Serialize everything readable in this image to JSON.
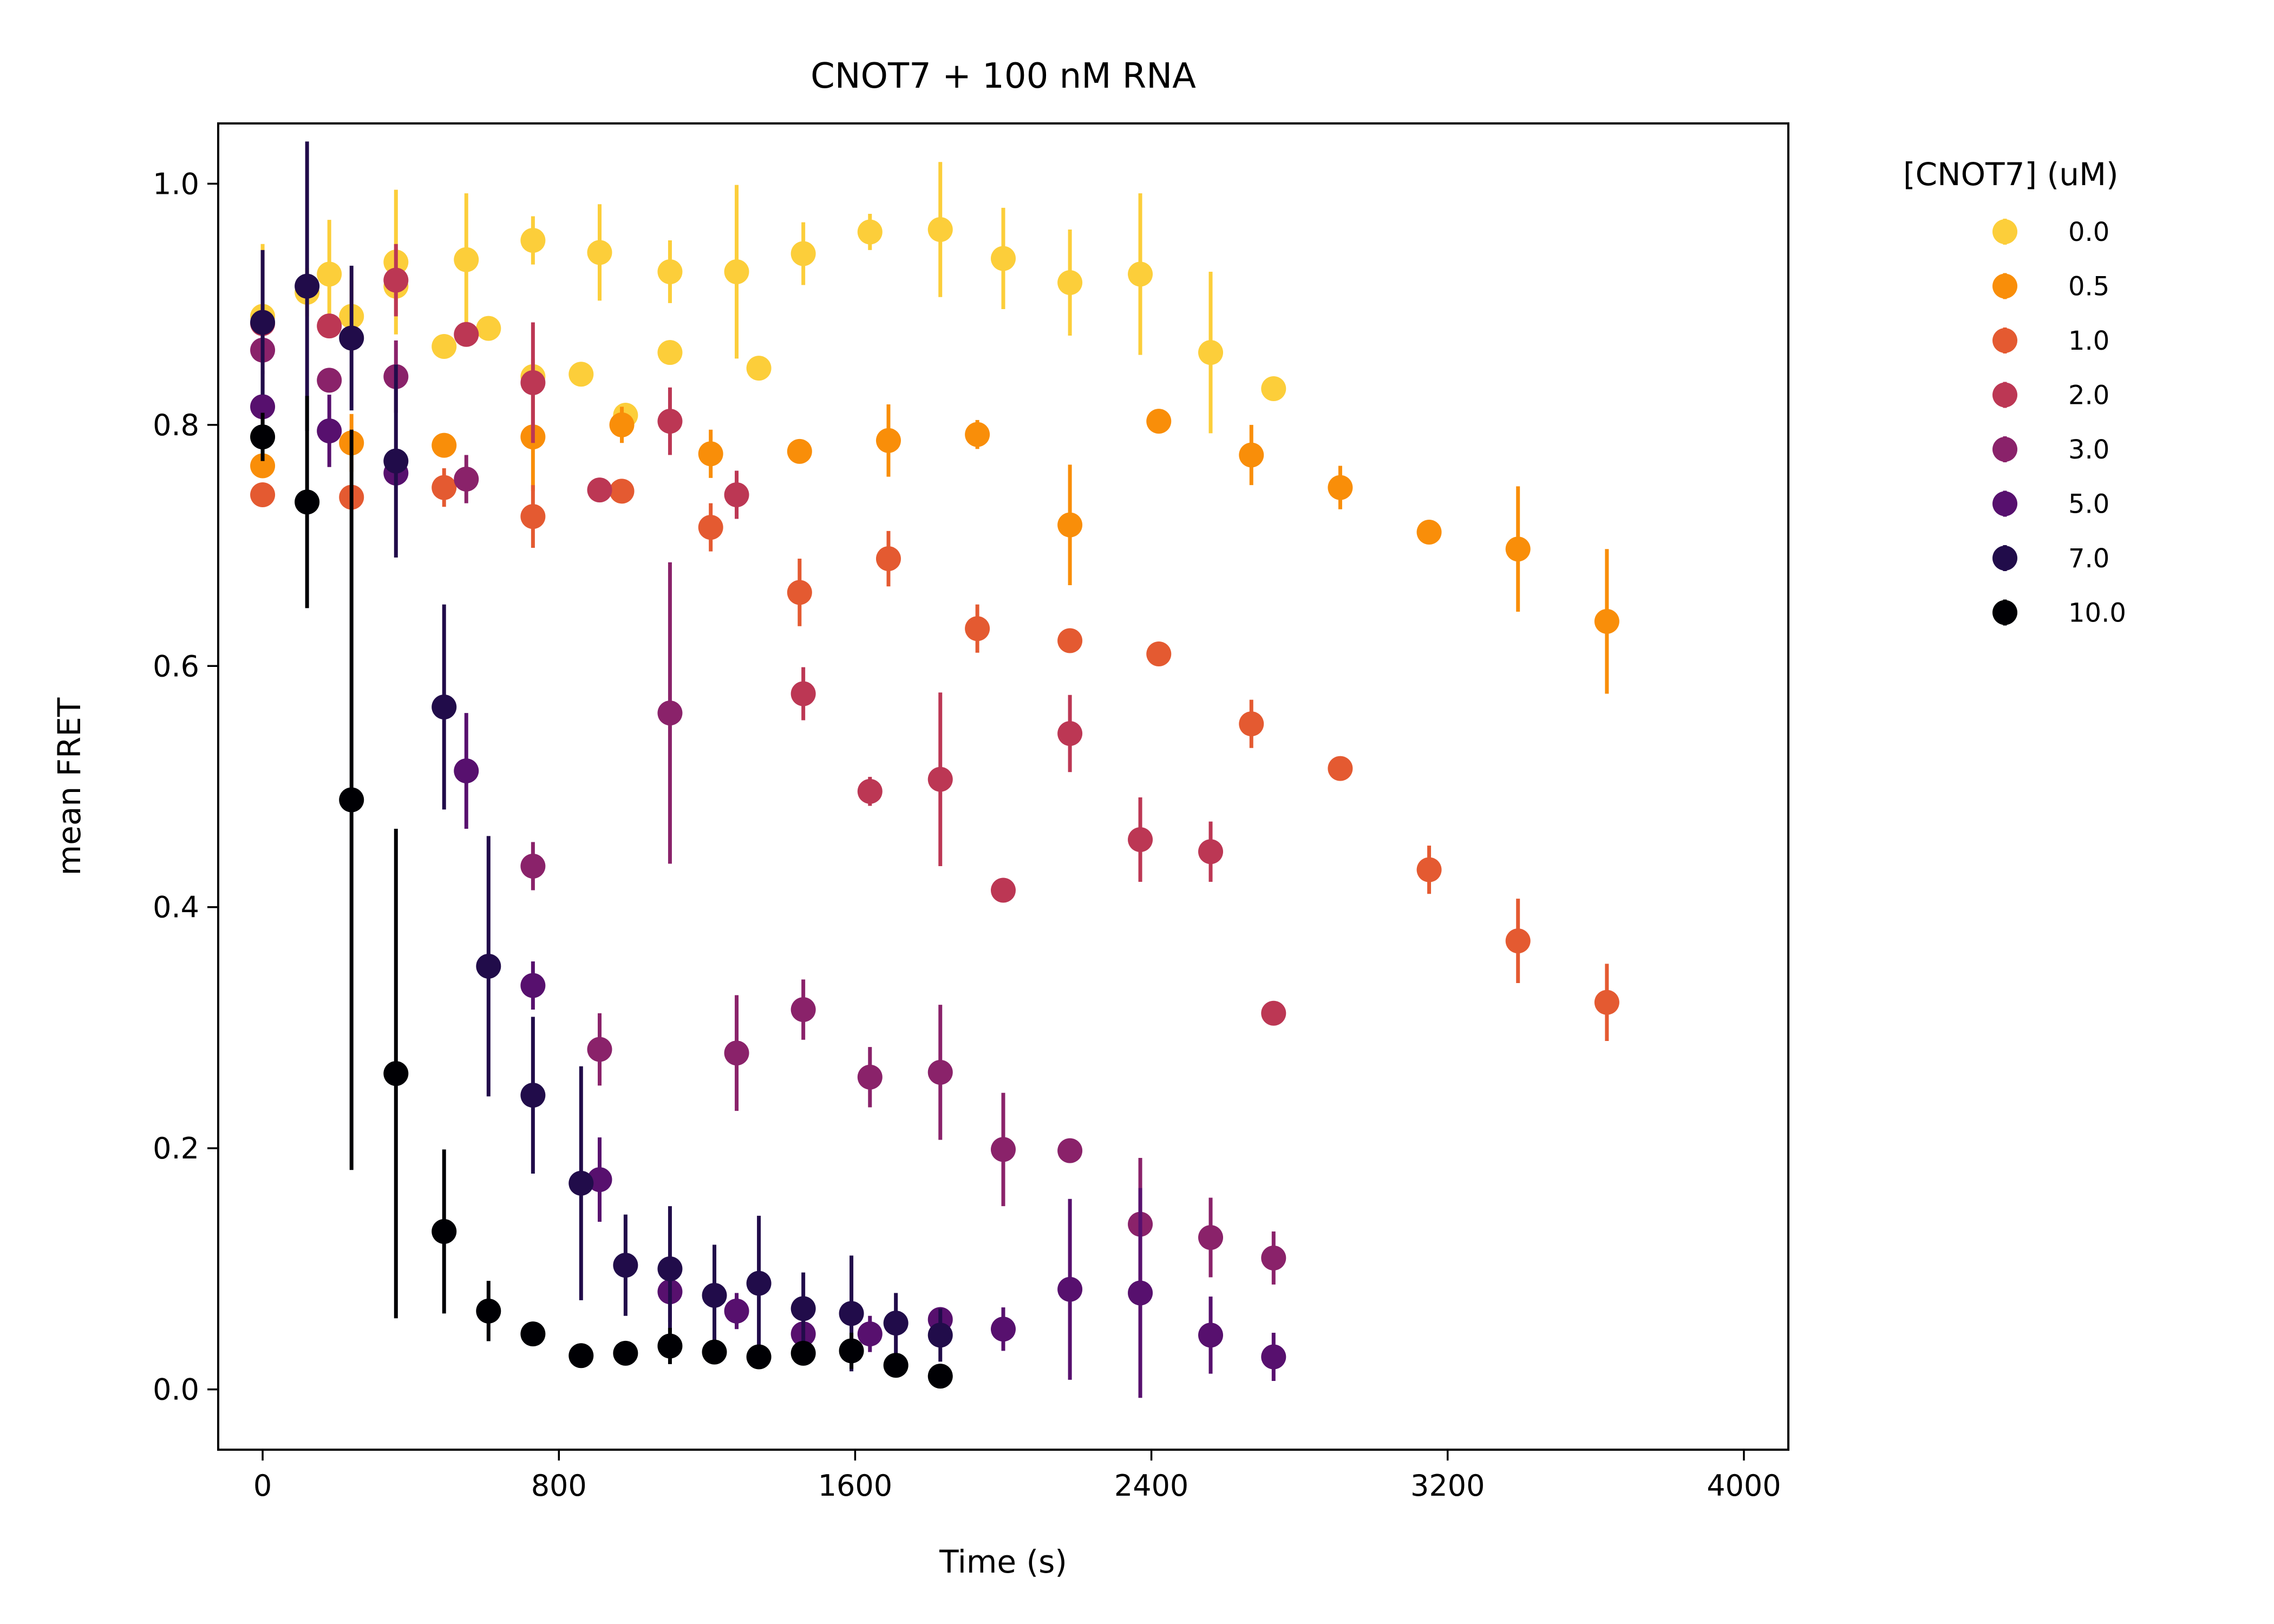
{
  "chart_data": {
    "type": "scatter",
    "title": "CNOT7 + 100 nM RNA",
    "xlabel": "Time (s)",
    "ylabel": "mean FRET",
    "xlim": [
      -120,
      4120
    ],
    "ylim": [
      -0.05,
      1.05
    ],
    "xticks": [
      0,
      800,
      1600,
      2400,
      3200,
      4000
    ],
    "xtick_labels": [
      "0",
      "800",
      "1600",
      "2400",
      "3200",
      "4000"
    ],
    "yticks": [
      0.0,
      0.2,
      0.4,
      0.6,
      0.8,
      1.0
    ],
    "ytick_labels": [
      "0.0",
      "0.2",
      "0.4",
      "0.6",
      "0.8",
      "1.0"
    ],
    "grid": false,
    "error_bars": true,
    "legend": {
      "title": "[CNOT7] (uM)",
      "placement": "outside-right"
    },
    "series": [
      {
        "name": "0.0",
        "color": "#fcce3a",
        "points": [
          [
            0,
            0.89,
            0.06
          ],
          [
            120,
            0.91,
            0.02
          ],
          [
            180,
            0.925,
            0.045
          ],
          [
            240,
            0.89,
            0.03
          ],
          [
            360,
            0.935,
            0.06
          ],
          [
            360,
            0.915,
            0.01
          ],
          [
            490,
            0.865,
            0.01
          ],
          [
            550,
            0.937,
            0.055
          ],
          [
            610,
            0.88,
            0.01
          ],
          [
            730,
            0.953,
            0.02
          ],
          [
            730,
            0.84,
            0.015
          ],
          [
            860,
            0.842,
            0.01
          ],
          [
            910,
            0.943,
            0.04
          ],
          [
            980,
            0.808,
            0.01
          ],
          [
            1100,
            0.927,
            0.026
          ],
          [
            1100,
            0.86,
            0.01
          ],
          [
            1280,
            0.927,
            0.072
          ],
          [
            1340,
            0.847,
            0.01
          ],
          [
            1460,
            0.942,
            0.026
          ],
          [
            1640,
            0.96,
            0.015
          ],
          [
            1830,
            0.962,
            0.056
          ],
          [
            2000,
            0.938,
            0.042
          ],
          [
            2180,
            0.918,
            0.044
          ],
          [
            2370,
            0.925,
            0.067
          ],
          [
            2560,
            0.86,
            0.067
          ],
          [
            2730,
            0.83,
            0.01
          ]
        ]
      },
      {
        "name": "0.5",
        "color": "#f98e09",
        "points": [
          [
            0,
            0.766,
            0.01
          ],
          [
            240,
            0.785,
            0.024
          ],
          [
            490,
            0.783,
            0.01
          ],
          [
            730,
            0.79,
            0.045
          ],
          [
            970,
            0.8,
            0.015
          ],
          [
            1210,
            0.776,
            0.02
          ],
          [
            1450,
            0.778,
            0.01
          ],
          [
            1690,
            0.787,
            0.03
          ],
          [
            1930,
            0.792,
            0.012
          ],
          [
            2180,
            0.717,
            0.05
          ],
          [
            2420,
            0.803,
            0.01
          ],
          [
            2670,
            0.775,
            0.025
          ],
          [
            2910,
            0.748,
            0.018
          ],
          [
            3150,
            0.711,
            0.01
          ],
          [
            3390,
            0.697,
            0.052
          ],
          [
            3630,
            0.637,
            0.06
          ]
        ]
      },
      {
        "name": "1.0",
        "color": "#e45a31",
        "points": [
          [
            0,
            0.742,
            0.01
          ],
          [
            240,
            0.74,
            0.01
          ],
          [
            490,
            0.748,
            0.016
          ],
          [
            730,
            0.724,
            0.026
          ],
          [
            970,
            0.745,
            0.01
          ],
          [
            1210,
            0.715,
            0.02
          ],
          [
            1450,
            0.661,
            0.028
          ],
          [
            1690,
            0.689,
            0.023
          ],
          [
            1930,
            0.631,
            0.02
          ],
          [
            2180,
            0.621,
            0.01
          ],
          [
            2420,
            0.61,
            0.01
          ],
          [
            2670,
            0.552,
            0.02
          ],
          [
            2910,
            0.515,
            0.01
          ],
          [
            3150,
            0.431,
            0.02
          ],
          [
            3390,
            0.372,
            0.035
          ],
          [
            3630,
            0.321,
            0.032
          ]
        ]
      },
      {
        "name": "2.0",
        "color": "#bc3754",
        "points": [
          [
            0,
            0.884,
            0.01
          ],
          [
            180,
            0.882,
            0.01
          ],
          [
            360,
            0.92,
            0.03
          ],
          [
            550,
            0.875,
            0.01
          ],
          [
            730,
            0.835,
            0.05
          ],
          [
            910,
            0.746,
            0.01
          ],
          [
            1100,
            0.803,
            0.028
          ],
          [
            1280,
            0.742,
            0.02
          ],
          [
            1460,
            0.577,
            0.022
          ],
          [
            1640,
            0.496,
            0.012
          ],
          [
            1830,
            0.506,
            0.072
          ],
          [
            2000,
            0.414,
            0.01
          ],
          [
            2180,
            0.544,
            0.032
          ],
          [
            2370,
            0.456,
            0.035
          ],
          [
            2560,
            0.446,
            0.025
          ],
          [
            2730,
            0.312,
            0.01
          ]
        ]
      },
      {
        "name": "3.0",
        "color": "#8a226a",
        "points": [
          [
            0,
            0.862,
            0.02
          ],
          [
            180,
            0.837,
            0.01
          ],
          [
            360,
            0.84,
            0.03
          ],
          [
            550,
            0.755,
            0.02
          ],
          [
            730,
            0.434,
            0.02
          ],
          [
            910,
            0.282,
            0.03
          ],
          [
            1100,
            0.561,
            0.125
          ],
          [
            1280,
            0.279,
            0.048
          ],
          [
            1460,
            0.315,
            0.025
          ],
          [
            1640,
            0.259,
            0.025
          ],
          [
            1830,
            0.263,
            0.056
          ],
          [
            2000,
            0.199,
            0.047
          ],
          [
            2180,
            0.198,
            0.01
          ],
          [
            2370,
            0.137,
            0.055
          ],
          [
            2560,
            0.126,
            0.033
          ],
          [
            2730,
            0.109,
            0.022
          ]
        ]
      },
      {
        "name": "5.0",
        "color": "#57106e",
        "points": [
          [
            0,
            0.815,
            0.03
          ],
          [
            180,
            0.795,
            0.03
          ],
          [
            360,
            0.76,
            0.01
          ],
          [
            550,
            0.513,
            0.048
          ],
          [
            730,
            0.335,
            0.02
          ],
          [
            910,
            0.174,
            0.035
          ],
          [
            1100,
            0.081,
            0.025
          ],
          [
            1280,
            0.065,
            0.015
          ],
          [
            1460,
            0.046,
            0.01
          ],
          [
            1640,
            0.046,
            0.015
          ],
          [
            1830,
            0.058,
            0.01
          ],
          [
            2000,
            0.05,
            0.018
          ],
          [
            2180,
            0.083,
            0.075
          ],
          [
            2370,
            0.08,
            0.087
          ],
          [
            2560,
            0.045,
            0.032
          ],
          [
            2730,
            0.027,
            0.02
          ]
        ]
      },
      {
        "name": "7.0",
        "color": "#210c4a",
        "points": [
          [
            0,
            0.885,
            0.06
          ],
          [
            120,
            0.915,
            0.12
          ],
          [
            240,
            0.872,
            0.06
          ],
          [
            360,
            0.77,
            0.08
          ],
          [
            490,
            0.566,
            0.085
          ],
          [
            610,
            0.351,
            0.108
          ],
          [
            730,
            0.244,
            0.065
          ],
          [
            860,
            0.171,
            0.097
          ],
          [
            980,
            0.103,
            0.042
          ],
          [
            1100,
            0.1,
            0.052
          ],
          [
            1220,
            0.078,
            0.042
          ],
          [
            1340,
            0.088,
            0.056
          ],
          [
            1460,
            0.067,
            0.03
          ],
          [
            1590,
            0.063,
            0.048
          ],
          [
            1710,
            0.055,
            0.025
          ],
          [
            1830,
            0.045,
            0.022
          ]
        ]
      },
      {
        "name": "10.0",
        "color": "#000004",
        "points": [
          [
            0,
            0.79,
            0.02
          ],
          [
            120,
            0.736,
            0.088
          ],
          [
            240,
            0.489,
            0.307
          ],
          [
            360,
            0.262,
            0.203
          ],
          [
            490,
            0.131,
            0.068
          ],
          [
            610,
            0.065,
            0.025
          ],
          [
            730,
            0.046,
            0.01
          ],
          [
            860,
            0.028,
            0.01
          ],
          [
            980,
            0.03,
            0.01
          ],
          [
            1100,
            0.036,
            0.015
          ],
          [
            1220,
            0.031,
            0.01
          ],
          [
            1340,
            0.027,
            0.01
          ],
          [
            1460,
            0.03,
            0.01
          ],
          [
            1590,
            0.032,
            0.015
          ],
          [
            1710,
            0.02,
            0.01
          ],
          [
            1830,
            0.011,
            0.01
          ]
        ]
      }
    ]
  }
}
